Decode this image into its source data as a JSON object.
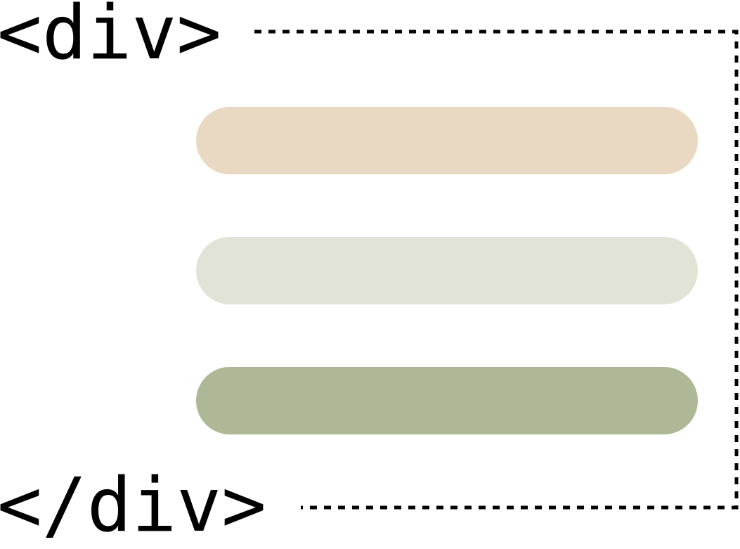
{
  "labels": {
    "open_tag": "<div>",
    "close_tag": "</div>"
  },
  "bars": [
    {
      "color": "#e9d9c3"
    },
    {
      "color": "#e1e3d7"
    },
    {
      "color": "#aeb796"
    }
  ],
  "outline": {
    "style": "dotted",
    "color": "#000000"
  }
}
